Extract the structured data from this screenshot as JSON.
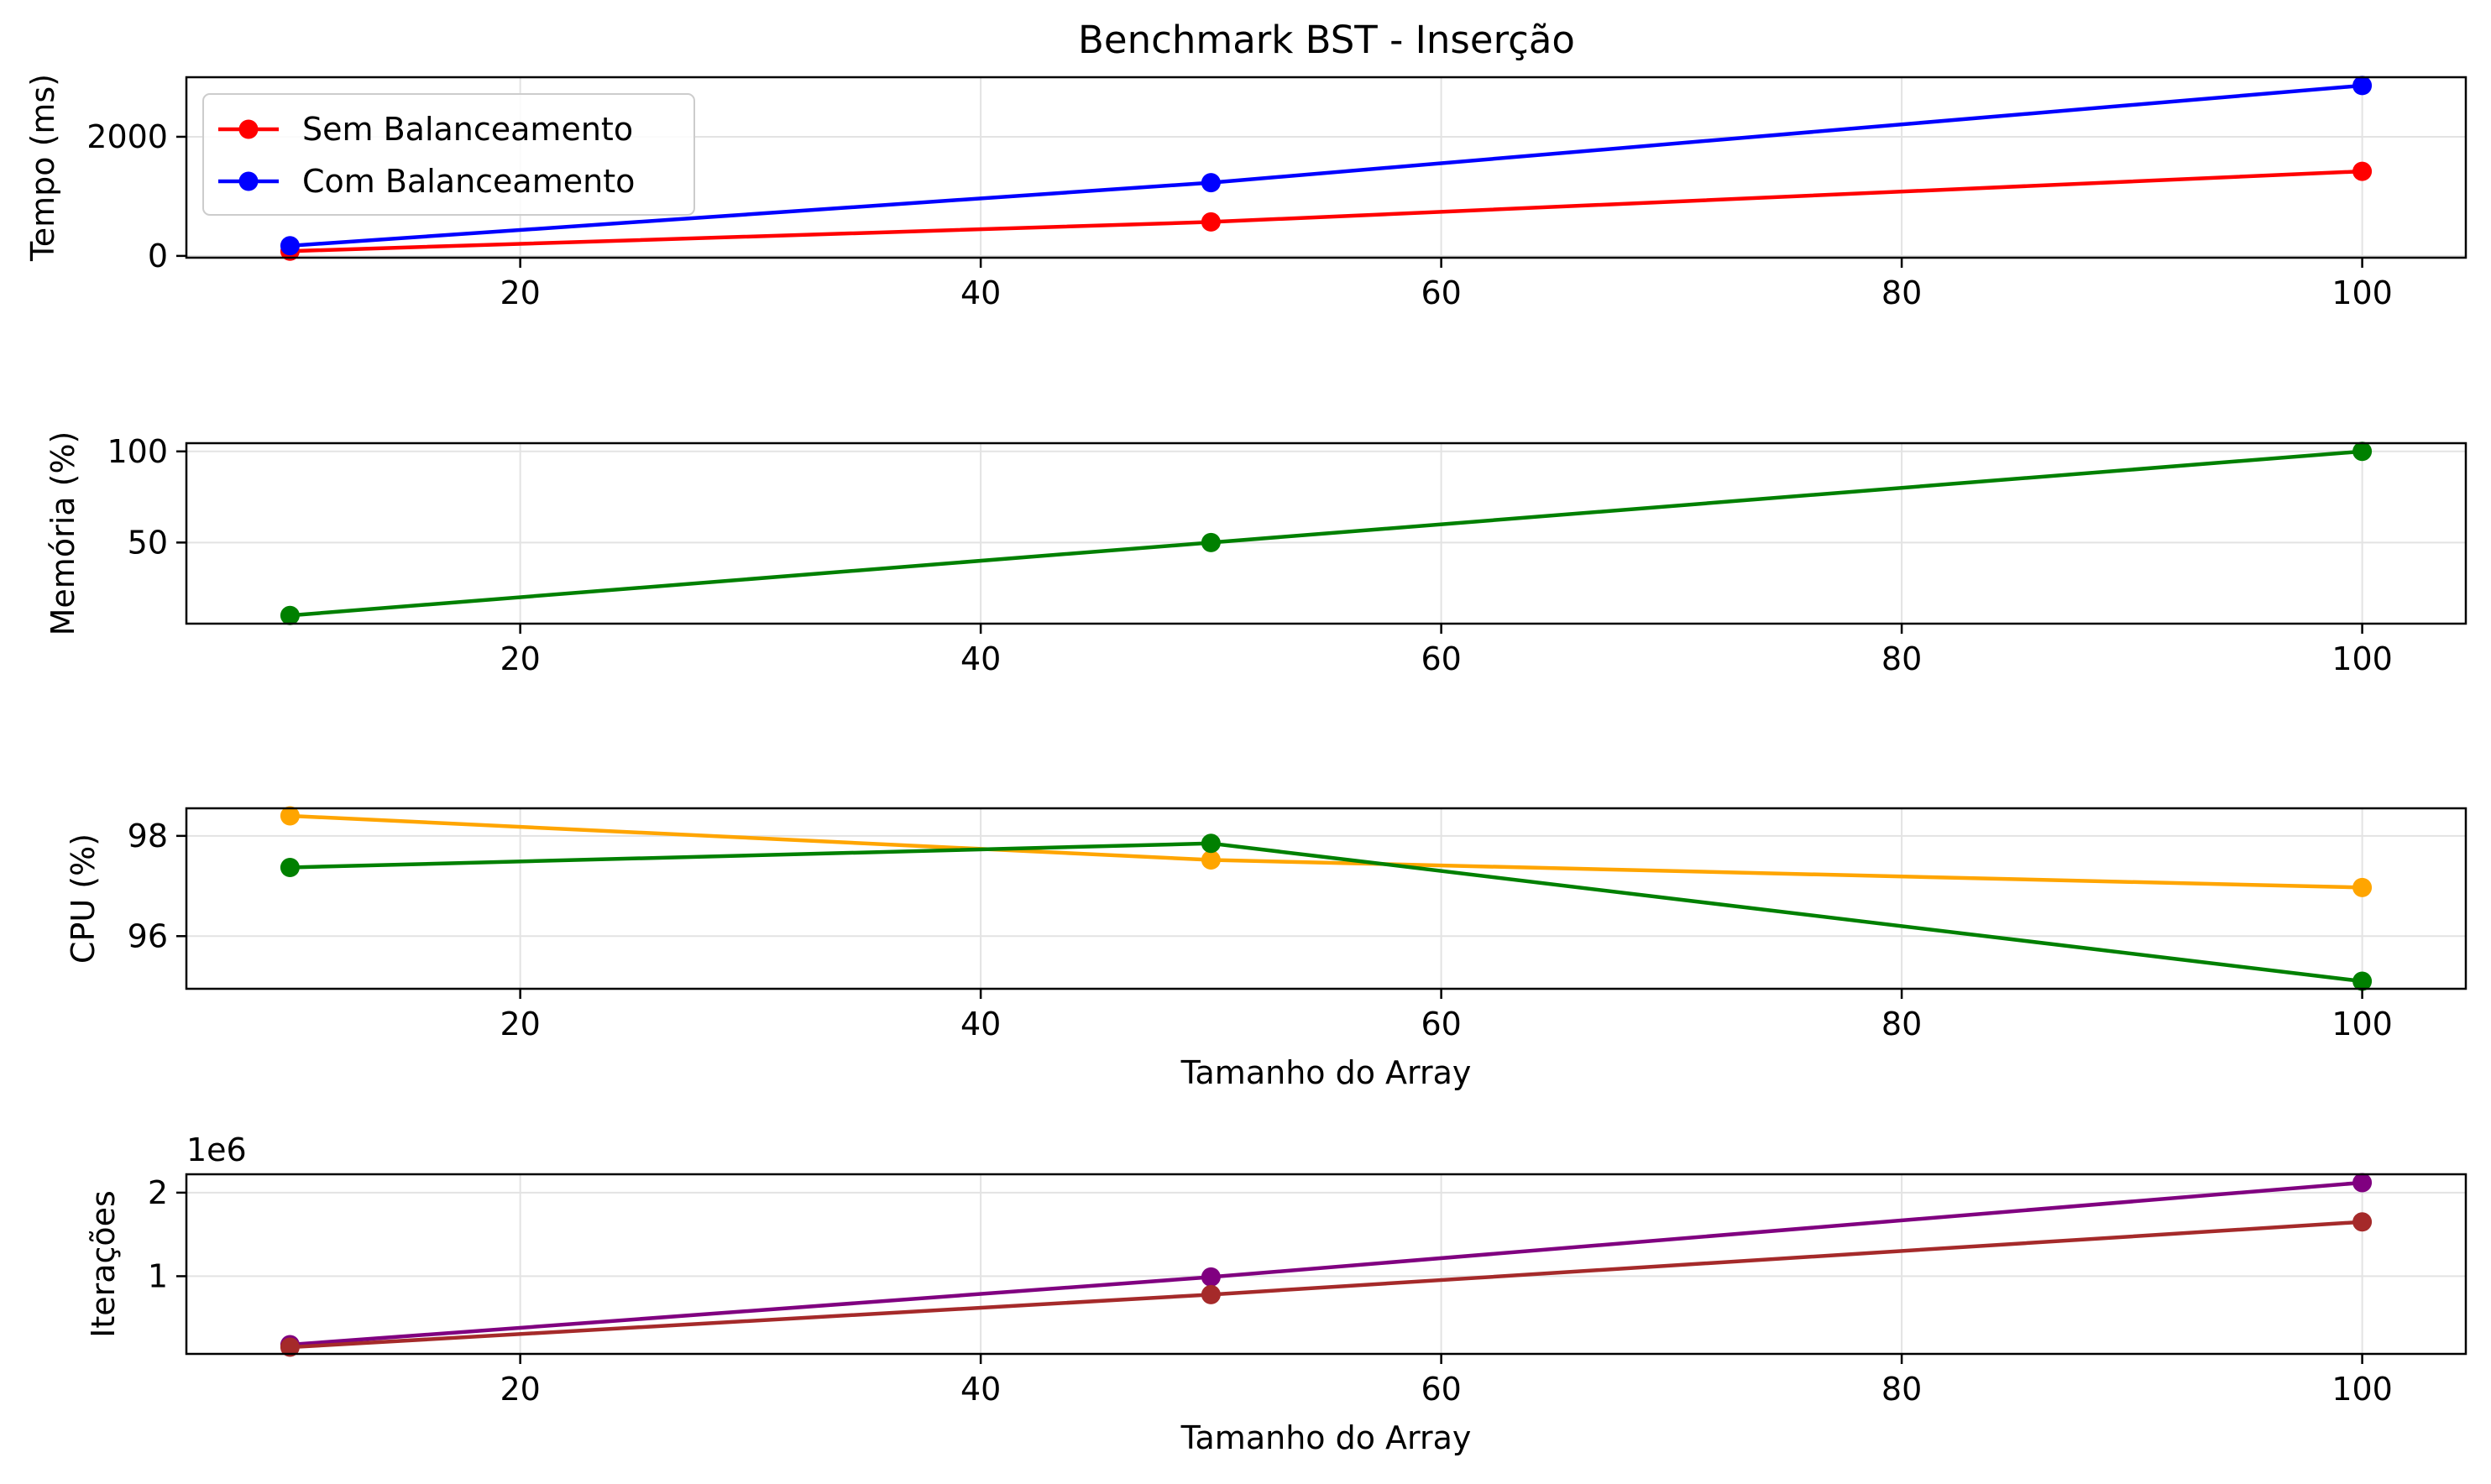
{
  "chart_data": {
    "title": "Benchmark BST - Inserção",
    "subplots": [
      {
        "type": "line",
        "ylabel": "Tempo (ms)",
        "xlabel": "",
        "xlim": [
          5.5,
          104.5
        ],
        "ylim": [
          -30,
          3000
        ],
        "xticks": [
          20,
          40,
          60,
          80,
          100
        ],
        "yticks": [
          0,
          2000
        ],
        "ytick_labels": [
          "0",
          "2000"
        ],
        "offset_label": "",
        "grid": true,
        "legend": {
          "placement": "upper left",
          "entries": [
            "Sem Balanceamento",
            "Com Balanceamento"
          ]
        },
        "series": [
          {
            "name": "Sem Balanceamento",
            "color": "#ff0000",
            "x": [
              10,
              50,
              100
            ],
            "y": [
              80,
              570,
              1420
            ]
          },
          {
            "name": "Com Balanceamento",
            "color": "#0000ff",
            "x": [
              10,
              50,
              100
            ],
            "y": [
              170,
              1230,
              2860
            ]
          }
        ]
      },
      {
        "type": "line",
        "ylabel": "Memória (%)",
        "xlabel": "",
        "xlim": [
          5.5,
          104.5
        ],
        "ylim": [
          5.5,
          104.5
        ],
        "xticks": [
          20,
          40,
          60,
          80,
          100
        ],
        "yticks": [
          50,
          100
        ],
        "ytick_labels": [
          "50",
          "100"
        ],
        "offset_label": "",
        "grid": true,
        "series": [
          {
            "color": "#008000",
            "x": [
              10,
              50,
              100
            ],
            "y": [
              10,
              50,
              100
            ]
          }
        ]
      },
      {
        "type": "line",
        "ylabel": "CPU (%)",
        "xlabel": "Tamanho do Array",
        "xlim": [
          5.5,
          104.5
        ],
        "ylim": [
          94.95,
          98.55
        ],
        "xticks": [
          20,
          40,
          60,
          80,
          100
        ],
        "yticks": [
          96,
          98
        ],
        "ytick_labels": [
          "96",
          "98"
        ],
        "offset_label": "",
        "grid": true,
        "series": [
          {
            "color": "#ffa500",
            "x": [
              10,
              50,
              100
            ],
            "y": [
              98.4,
              97.52,
              96.97
            ]
          },
          {
            "color": "#008000",
            "x": [
              10,
              50,
              100
            ],
            "y": [
              97.37,
              97.85,
              95.1
            ]
          }
        ]
      },
      {
        "type": "line",
        "ylabel": "Iterações",
        "xlabel": "Tamanho do Array",
        "xlim": [
          5.5,
          104.5
        ],
        "ylim": [
          70000,
          2220000
        ],
        "xticks": [
          20,
          40,
          60,
          80,
          100
        ],
        "yticks": [
          1000000,
          2000000
        ],
        "ytick_labels": [
          "1",
          "2"
        ],
        "offset_label": "1e6",
        "grid": true,
        "series": [
          {
            "color": "#800080",
            "x": [
              10,
              50,
              100
            ],
            "y": [
              180000,
              990000,
              2120000
            ]
          },
          {
            "color": "#a52a2a",
            "x": [
              10,
              50,
              100
            ],
            "y": [
              150000,
              780000,
              1650000
            ]
          }
        ]
      }
    ]
  }
}
